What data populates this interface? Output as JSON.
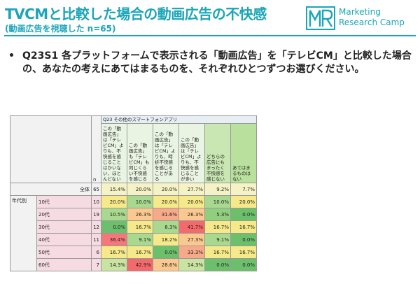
{
  "header": {
    "title": "TVCMと比較した場合の動画広告の不快感",
    "subtitle": "(動画広告を視聴した n=65)",
    "logo_mark": "MR",
    "logo_line1": "Marketing",
    "logo_line2": "Research Camp"
  },
  "question": {
    "bullet": "•",
    "text": "Q23S1 各プラットフォームで表示される「動画広告」を「テレビCM」と比較した場合の、あなたの考えにあてはまるものを、それぞれひとつずつお選びください。"
  },
  "table": {
    "question_label": "Q23 その他のスマートフォンアプリ",
    "n_label": "n",
    "group_label": "年代別",
    "columns": [
      "この「動画広告」は「テレビCM」よりも、不快感を感じることはかいない、ほとんどない",
      "この「動画広告」も「テレビCM」も同じくらい不快感を感じる",
      "この「動画広告」は「テレビCM」よりも、時折不快感を感じることがある",
      "この「動画広告」は「テレビCM」よりも、不快感を感じることが多い",
      "どちらの広告にもまったく不快感を感じない",
      "あてはまるものはない"
    ],
    "rows": [
      {
        "label": "全体",
        "n": "65",
        "values": [
          "15.4%",
          "20.0%",
          "20.0%",
          "27.7%",
          "9.2%",
          "7.7%"
        ]
      },
      {
        "label": "10代",
        "n": "10",
        "values": [
          "20.0%",
          "10.0%",
          "20.0%",
          "20.0%",
          "10.0%",
          "20.0%"
        ]
      },
      {
        "label": "20代",
        "n": "19",
        "values": [
          "10.5%",
          "26.3%",
          "31.6%",
          "26.3%",
          "5.3%",
          "0.0%"
        ]
      },
      {
        "label": "30代",
        "n": "12",
        "values": [
          "0.0%",
          "16.7%",
          "8.3%",
          "41.7%",
          "16.7%",
          "16.7%"
        ]
      },
      {
        "label": "40代",
        "n": "11",
        "values": [
          "36.4%",
          "9.1%",
          "18.2%",
          "27.3%",
          "9.1%",
          "0.0%"
        ]
      },
      {
        "label": "50代",
        "n": "6",
        "values": [
          "16.7%",
          "16.7%",
          "0.0%",
          "33.3%",
          "16.7%",
          "16.7%"
        ]
      },
      {
        "label": "60代",
        "n": "7",
        "values": [
          "14.3%",
          "42.9%",
          "28.6%",
          "14.3%",
          "0.0%",
          "0.0%"
        ]
      }
    ],
    "cell_colors": [
      [
        "#f5f3c6",
        "#f5f3c6",
        "#f5f3c6",
        "#f5f3c6",
        "#f5f3c6",
        "#f5f3c6"
      ],
      [
        "#f5e98a",
        "#a9d98e",
        "#f5e98a",
        "#f5e98a",
        "#a9d98e",
        "#f5e98a"
      ],
      [
        "#a9d98e",
        "#fbc98f",
        "#f7a98a",
        "#fbc98f",
        "#8fcf7e",
        "#6cc06c"
      ],
      [
        "#6cc06c",
        "#f5e98a",
        "#a9d98e",
        "#f4696b",
        "#f5e98a",
        "#f5e98a"
      ],
      [
        "#f4787a",
        "#a9d98e",
        "#f5e98a",
        "#fbc98f",
        "#a9d98e",
        "#6cc06c"
      ],
      [
        "#f5e98a",
        "#f5e98a",
        "#6cc06c",
        "#f7a98a",
        "#f5e98a",
        "#f5e98a"
      ],
      [
        "#c9e3a0",
        "#f4696b",
        "#fbc98f",
        "#c9e3a0",
        "#6cc06c",
        "#6cc06c"
      ]
    ]
  }
}
